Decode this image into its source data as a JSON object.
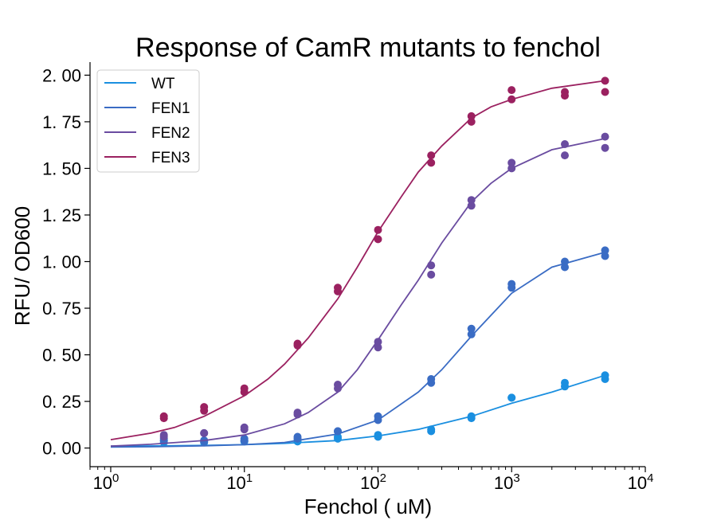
{
  "chart_data": {
    "type": "scatter",
    "title": "Response of CamR mutants to fenchol",
    "xlabel": "Fenchol ( uM)",
    "ylabel": "RFU/ OD600",
    "x_scale": "log",
    "xlim": [
      0.7,
      10000
    ],
    "ylim": [
      -0.1,
      2.07
    ],
    "x_ticks": [
      {
        "value": 1,
        "base": "10",
        "exp": "0"
      },
      {
        "value": 10,
        "base": "10",
        "exp": "1"
      },
      {
        "value": 100,
        "base": "10",
        "exp": "2"
      },
      {
        "value": 1000,
        "base": "10",
        "exp": "3"
      },
      {
        "value": 10000,
        "base": "10",
        "exp": "4"
      }
    ],
    "y_ticks": [
      {
        "value": 0.0,
        "label": "0. 00"
      },
      {
        "value": 0.25,
        "label": "0. 25"
      },
      {
        "value": 0.5,
        "label": "0. 50"
      },
      {
        "value": 0.75,
        "label": "0. 75"
      },
      {
        "value": 1.0,
        "label": "1. 00"
      },
      {
        "value": 1.25,
        "label": "1. 25"
      },
      {
        "value": 1.5,
        "label": "1. 50"
      },
      {
        "value": 1.75,
        "label": "1. 75"
      },
      {
        "value": 2.0,
        "label": "2. 00"
      }
    ],
    "legend_position": "top-left",
    "grid": false,
    "series": [
      {
        "name": "WT",
        "color": "#1a8fe0",
        "curve": {
          "x": [
            1,
            2,
            5,
            10,
            20,
            50,
            100,
            200,
            500,
            1000,
            2000,
            5000
          ],
          "y": [
            0.01,
            0.011,
            0.014,
            0.018,
            0.025,
            0.04,
            0.065,
            0.1,
            0.17,
            0.24,
            0.3,
            0.39
          ]
        },
        "points": {
          "x": [
            2.5,
            2.5,
            5,
            5,
            10,
            10,
            25,
            25,
            50,
            50,
            100,
            100,
            250,
            250,
            500,
            500,
            1000,
            1000,
            2500,
            2500,
            5000,
            5000
          ],
          "y": [
            0.04,
            0.03,
            0.03,
            0.04,
            0.04,
            0.035,
            0.04,
            0.035,
            0.05,
            0.06,
            0.06,
            0.07,
            0.09,
            0.1,
            0.16,
            0.17,
            0.27,
            0.27,
            0.33,
            0.35,
            0.37,
            0.39
          ]
        }
      },
      {
        "name": "FEN1",
        "color": "#3a6cc4",
        "curve": {
          "x": [
            1,
            2,
            5,
            10,
            20,
            50,
            100,
            200,
            300,
            500,
            1000,
            2000,
            5000
          ],
          "y": [
            0.005,
            0.007,
            0.012,
            0.018,
            0.03,
            0.075,
            0.15,
            0.3,
            0.42,
            0.6,
            0.83,
            0.97,
            1.05
          ]
        },
        "points": {
          "x": [
            2.5,
            2.5,
            5,
            5,
            10,
            10,
            25,
            25,
            50,
            50,
            100,
            100,
            250,
            250,
            500,
            500,
            1000,
            1000,
            2500,
            2500,
            5000,
            5000
          ],
          "y": [
            0.04,
            0.05,
            0.04,
            0.035,
            0.05,
            0.04,
            0.06,
            0.05,
            0.09,
            0.09,
            0.15,
            0.17,
            0.35,
            0.37,
            0.61,
            0.64,
            0.86,
            0.88,
            0.97,
            1.0,
            1.03,
            1.06
          ]
        }
      },
      {
        "name": "FEN2",
        "color": "#6a4ca0",
        "curve": {
          "x": [
            1,
            2,
            5,
            10,
            20,
            30,
            50,
            70,
            100,
            150,
            200,
            300,
            500,
            700,
            1000,
            2000,
            5000
          ],
          "y": [
            0.01,
            0.02,
            0.04,
            0.07,
            0.13,
            0.19,
            0.3,
            0.42,
            0.58,
            0.77,
            0.9,
            1.1,
            1.32,
            1.42,
            1.5,
            1.6,
            1.66
          ]
        },
        "points": {
          "x": [
            2.5,
            2.5,
            5,
            5,
            10,
            10,
            25,
            25,
            50,
            50,
            100,
            100,
            250,
            250,
            500,
            500,
            1000,
            1000,
            2500,
            2500,
            5000,
            5000
          ],
          "y": [
            0.07,
            0.06,
            0.08,
            0.08,
            0.1,
            0.11,
            0.18,
            0.19,
            0.32,
            0.34,
            0.54,
            0.57,
            0.93,
            0.98,
            1.3,
            1.33,
            1.5,
            1.53,
            1.57,
            1.63,
            1.61,
            1.67
          ]
        }
      },
      {
        "name": "FEN3",
        "color": "#9b2160",
        "curve": {
          "x": [
            1,
            2,
            3,
            5,
            10,
            15,
            20,
            30,
            50,
            70,
            100,
            150,
            200,
            300,
            500,
            700,
            1000,
            2000,
            5000
          ],
          "y": [
            0.045,
            0.08,
            0.11,
            0.17,
            0.28,
            0.37,
            0.45,
            0.59,
            0.8,
            0.97,
            1.16,
            1.35,
            1.48,
            1.62,
            1.77,
            1.83,
            1.87,
            1.93,
            1.97
          ]
        },
        "points": {
          "x": [
            2.5,
            2.5,
            5,
            5,
            10,
            10,
            25,
            25,
            50,
            50,
            100,
            100,
            250,
            250,
            500,
            500,
            1000,
            1000,
            2500,
            2500,
            5000,
            5000
          ],
          "y": [
            0.16,
            0.17,
            0.2,
            0.22,
            0.3,
            0.32,
            0.55,
            0.56,
            0.84,
            0.86,
            1.12,
            1.17,
            1.53,
            1.57,
            1.75,
            1.78,
            1.87,
            1.92,
            1.89,
            1.91,
            1.91,
            1.97
          ]
        }
      }
    ]
  }
}
